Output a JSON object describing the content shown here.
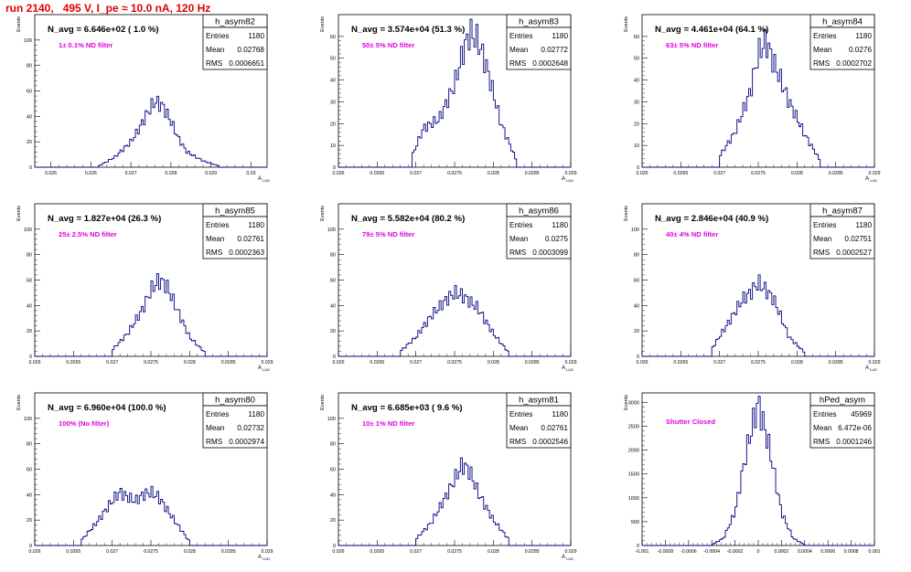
{
  "title": "run 2140,   495 V, I_pe ≈ 10.0 nA, 120 Hz",
  "colors": {
    "title": "#e00000",
    "hist_line": "#000080",
    "annotation": "#e000e0"
  },
  "chart_data": [
    {
      "type": "histogram",
      "name": "h_asym82",
      "nav_label": "N_avg = 6.646e+02 ( 1.0 %)",
      "filter_label": "1± 0.1% ND filter",
      "stats": [
        [
          "Entries",
          "1180"
        ],
        [
          "Mean",
          "0.02768"
        ],
        [
          "RMS",
          "0.0006651"
        ]
      ],
      "ylabel": "Events",
      "xlabel": "A",
      "xlim": [
        0.0246,
        0.0304
      ],
      "ylim": [
        0,
        120
      ],
      "xticks": [
        0.025,
        0.026,
        0.027,
        0.028,
        0.029,
        0.03
      ],
      "xtick_labels": [
        "0.025",
        "0.026",
        "0.027",
        "0.028",
        "0.029",
        "0.03"
      ],
      "yticks": [
        0,
        20,
        40,
        60,
        80,
        100
      ],
      "x": [
        0.0262,
        0.0266,
        0.027,
        0.0272,
        0.0274,
        0.0276,
        0.0278,
        0.028,
        0.0282,
        0.0284,
        0.0288,
        0.0292
      ],
      "y": [
        1,
        8,
        20,
        30,
        42,
        52,
        48,
        36,
        22,
        12,
        5,
        1
      ]
    },
    {
      "type": "histogram",
      "name": "h_asym83",
      "nav_label": "N_avg = 3.574e+04 (51.3 %)",
      "filter_label": "50± 5% ND filter",
      "stats": [
        [
          "Entries",
          "1180"
        ],
        [
          "Mean",
          "0.02772"
        ],
        [
          "RMS",
          "0.0002648"
        ]
      ],
      "ylabel": "Events",
      "xlabel": "A",
      "xlim": [
        0.026,
        0.029
      ],
      "ylim": [
        0,
        70
      ],
      "xticks": [
        0.026,
        0.0265,
        0.027,
        0.0275,
        0.028,
        0.0285,
        0.029
      ],
      "xtick_labels": [
        "0.026",
        "0.0265",
        "0.027",
        "0.0275",
        "0.028",
        "0.0285",
        "0.029"
      ],
      "yticks": [
        0,
        10,
        20,
        30,
        40,
        50,
        60
      ],
      "x": [
        0.02695,
        0.0271,
        0.0273,
        0.0275,
        0.0276,
        0.0277,
        0.0278,
        0.0279,
        0.0281,
        0.0283
      ],
      "y": [
        5,
        18,
        22,
        38,
        52,
        62,
        58,
        48,
        20,
        3
      ]
    },
    {
      "type": "histogram",
      "name": "h_asym84",
      "nav_label": "N_avg = 4.461e+04 (64.1 %)",
      "filter_label": "63± 5% ND filter",
      "stats": [
        [
          "Entries",
          "1180"
        ],
        [
          "Mean",
          "0.0276"
        ],
        [
          "RMS",
          "0.0002702"
        ]
      ],
      "ylabel": "Events",
      "xlabel": "A",
      "xlim": [
        0.026,
        0.029
      ],
      "ylim": [
        0,
        70
      ],
      "xticks": [
        0.026,
        0.0265,
        0.027,
        0.0275,
        0.028,
        0.0285,
        0.029
      ],
      "xtick_labels": [
        "0.026",
        "0.0265",
        "0.027",
        "0.0275",
        "0.028",
        "0.0285",
        "0.029"
      ],
      "yticks": [
        0,
        10,
        20,
        30,
        40,
        50,
        60
      ],
      "x": [
        0.027,
        0.0272,
        0.0274,
        0.0275,
        0.0276,
        0.0277,
        0.0279,
        0.0281,
        0.0283
      ],
      "y": [
        5,
        16,
        35,
        52,
        58,
        48,
        30,
        15,
        3
      ]
    },
    {
      "type": "histogram",
      "name": "h_asym85",
      "nav_label": "N_avg = 1.827e+04 (26.3 %)",
      "filter_label": "25± 2.5% ND filter",
      "stats": [
        [
          "Entries",
          "1180"
        ],
        [
          "Mean",
          "0.02761"
        ],
        [
          "RMS",
          "0.0002363"
        ]
      ],
      "ylabel": "Events",
      "xlabel": "A",
      "xlim": [
        0.026,
        0.029
      ],
      "ylim": [
        0,
        120
      ],
      "xticks": [
        0.026,
        0.0265,
        0.027,
        0.0275,
        0.028,
        0.0285,
        0.029
      ],
      "xtick_labels": [
        "0.026",
        "0.0265",
        "0.027",
        "0.0275",
        "0.028",
        "0.0285",
        "0.029"
      ],
      "yticks": [
        0,
        20,
        40,
        60,
        80,
        100
      ],
      "x": [
        0.027,
        0.0272,
        0.0274,
        0.0275,
        0.0276,
        0.0277,
        0.0278,
        0.028,
        0.0282
      ],
      "y": [
        5,
        18,
        38,
        52,
        60,
        56,
        42,
        15,
        3
      ]
    },
    {
      "type": "histogram",
      "name": "h_asym86",
      "nav_label": "N_avg = 5.582e+04 (80.2 %)",
      "filter_label": "79± 5% ND filter",
      "stats": [
        [
          "Entries",
          "1180"
        ],
        [
          "Mean",
          "0.0275"
        ],
        [
          "RMS",
          "0.0003099"
        ]
      ],
      "ylabel": "Events",
      "xlabel": "A",
      "xlim": [
        0.026,
        0.029
      ],
      "ylim": [
        0,
        120
      ],
      "xticks": [
        0.026,
        0.0265,
        0.027,
        0.0275,
        0.028,
        0.0285,
        0.029
      ],
      "xtick_labels": [
        "0.026",
        "0.0265",
        "0.027",
        "0.0275",
        "0.028",
        "0.0285",
        "0.029"
      ],
      "yticks": [
        0,
        20,
        40,
        60,
        80,
        100
      ],
      "x": [
        0.0268,
        0.027,
        0.0272,
        0.0274,
        0.0275,
        0.0276,
        0.0278,
        0.028,
        0.0282
      ],
      "y": [
        4,
        15,
        32,
        45,
        50,
        48,
        38,
        18,
        3
      ]
    },
    {
      "type": "histogram",
      "name": "h_asym87",
      "nav_label": "N_avg = 2.846e+04 (40.9 %)",
      "filter_label": "40± 4% ND filter",
      "stats": [
        [
          "Entries",
          "1180"
        ],
        [
          "Mean",
          "0.02751"
        ],
        [
          "RMS",
          "0.0002527"
        ]
      ],
      "ylabel": "Events",
      "xlabel": "A",
      "xlim": [
        0.026,
        0.029
      ],
      "ylim": [
        0,
        120
      ],
      "xticks": [
        0.026,
        0.0265,
        0.027,
        0.0275,
        0.028,
        0.0285,
        0.029
      ],
      "xtick_labels": [
        "0.026",
        "0.0265",
        "0.027",
        "0.0275",
        "0.028",
        "0.0285",
        "0.029"
      ],
      "yticks": [
        0,
        20,
        40,
        60,
        80,
        100
      ],
      "x": [
        0.0269,
        0.0271,
        0.0273,
        0.0274,
        0.0275,
        0.0276,
        0.0277,
        0.0279,
        0.0281
      ],
      "y": [
        6,
        25,
        45,
        50,
        58,
        52,
        45,
        15,
        3
      ]
    },
    {
      "type": "histogram",
      "name": "h_asym80",
      "nav_label": "N_avg = 6.960e+04 (100.0 %)",
      "filter_label": "100% (No filter)",
      "stats": [
        [
          "Entries",
          "1180"
        ],
        [
          "Mean",
          "0.02732"
        ],
        [
          "RMS",
          "0.0002974"
        ]
      ],
      "ylabel": "Events",
      "xlabel": "A",
      "xlim": [
        0.026,
        0.029
      ],
      "ylim": [
        0,
        120
      ],
      "xticks": [
        0.026,
        0.0265,
        0.027,
        0.0275,
        0.028,
        0.0285,
        0.029
      ],
      "xtick_labels": [
        "0.026",
        "0.0265",
        "0.027",
        "0.0275",
        "0.028",
        "0.0285",
        "0.029"
      ],
      "yticks": [
        0,
        20,
        40,
        60,
        80,
        100
      ],
      "x": [
        0.0266,
        0.0268,
        0.027,
        0.0271,
        0.0272,
        0.0273,
        0.0274,
        0.0275,
        0.0276,
        0.0278,
        0.028
      ],
      "y": [
        4,
        18,
        35,
        42,
        38,
        35,
        40,
        42,
        38,
        20,
        3
      ]
    },
    {
      "type": "histogram",
      "name": "h_asym81",
      "nav_label": "N_avg = 6.685e+03 ( 9.6 %)",
      "filter_label": "10± 1% ND filter",
      "stats": [
        [
          "Entries",
          "1180"
        ],
        [
          "Mean",
          "0.02761"
        ],
        [
          "RMS",
          "0.0002546"
        ]
      ],
      "ylabel": "Events",
      "xlabel": "A",
      "xlim": [
        0.026,
        0.029
      ],
      "ylim": [
        0,
        120
      ],
      "xticks": [
        0.026,
        0.0265,
        0.027,
        0.0275,
        0.028,
        0.0285,
        0.029
      ],
      "xtick_labels": [
        "0.026",
        "0.0265",
        "0.027",
        "0.0275",
        "0.028",
        "0.0285",
        "0.029"
      ],
      "yticks": [
        0,
        20,
        40,
        60,
        80,
        100
      ],
      "x": [
        0.027,
        0.0272,
        0.0274,
        0.0275,
        0.0276,
        0.0277,
        0.0278,
        0.028,
        0.0282
      ],
      "y": [
        5,
        18,
        40,
        52,
        64,
        58,
        42,
        20,
        5
      ]
    },
    {
      "type": "histogram",
      "name": "hPed_asym",
      "nav_label": "",
      "filter_label": "Shutter Closed",
      "stats": [
        [
          "Entries",
          "45969"
        ],
        [
          "Mean",
          "6.472e-06"
        ],
        [
          "RMS",
          "0.0001246"
        ]
      ],
      "ylabel": "Events",
      "xlabel": "",
      "xlim": [
        -0.001,
        0.001
      ],
      "ylim": [
        0,
        3200
      ],
      "xticks": [
        -0.001,
        -0.0008,
        -0.0006,
        -0.0004,
        -0.0002,
        0,
        0.0002,
        0.0004,
        0.0006,
        0.0008,
        0.001
      ],
      "xtick_labels": [
        "-0.001",
        "-0.0008",
        "-0.0006",
        "-0.0004",
        "-0.0002",
        "0",
        "0.0002",
        "0.0004",
        "0.0006",
        "0.0008",
        "0.001"
      ],
      "yticks": [
        0,
        500,
        1000,
        1500,
        2000,
        2500,
        3000
      ],
      "x": [
        -0.0004,
        -0.0003,
        -0.0002,
        -0.0001,
        0,
        0.0001,
        0.0002,
        0.0003,
        0.0004
      ],
      "y": [
        20,
        150,
        700,
        2000,
        3000,
        2000,
        700,
        150,
        20
      ]
    }
  ]
}
